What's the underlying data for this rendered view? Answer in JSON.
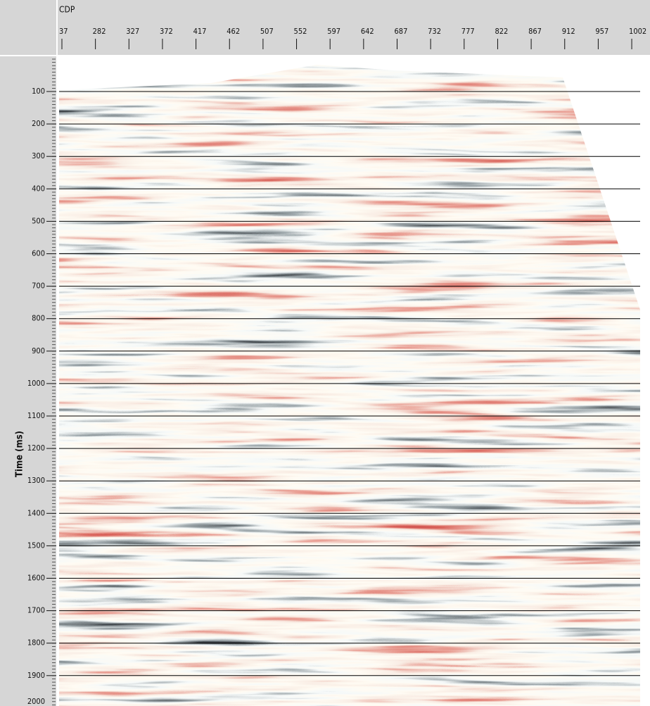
{
  "axis_top": {
    "label": "CDP",
    "ticks": [
      "37",
      "282",
      "327",
      "372",
      "417",
      "462",
      "507",
      "552",
      "597",
      "642",
      "687",
      "732",
      "777",
      "822",
      "867",
      "912",
      "957",
      "1002"
    ]
  },
  "axis_left": {
    "label": "Time (ms)",
    "ticks": [
      "100",
      "200",
      "300",
      "400",
      "500",
      "600",
      "700",
      "800",
      "900",
      "1000",
      "1100",
      "1200",
      "1300",
      "1400",
      "1500",
      "1600",
      "1700",
      "1800",
      "1900",
      "2000"
    ]
  }
}
